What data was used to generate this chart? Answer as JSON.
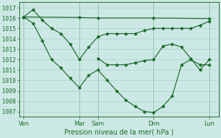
{
  "bg_color": "#cce8e4",
  "grid_color": "#aaccc8",
  "line_color": "#1a6b2a",
  "xlabel": "Pression niveau de la mer( hPa )",
  "ylim": [
    1006.5,
    1017.5
  ],
  "yticks": [
    1007,
    1008,
    1009,
    1010,
    1011,
    1012,
    1013,
    1014,
    1015,
    1016,
    1017
  ],
  "xtick_labels": [
    "Ven",
    "Mar",
    "Sam",
    "Dim",
    "Lun"
  ],
  "xtick_positions": [
    0,
    36,
    48,
    84,
    120
  ],
  "vline_positions": [
    0,
    36,
    48,
    84,
    120
  ],
  "xlim": [
    -3,
    126
  ],
  "line_flat_x": [
    0,
    36,
    48,
    84,
    120
  ],
  "line_flat_y": [
    1016.1,
    1016.05,
    1016.0,
    1016.0,
    1015.95
  ],
  "line_mid_x": [
    0,
    6,
    12,
    18,
    24,
    30,
    36,
    42,
    48,
    54,
    60,
    66,
    72,
    78,
    84,
    90,
    96,
    102,
    108,
    114,
    120
  ],
  "line_mid_y": [
    1016.1,
    1016.8,
    1015.8,
    1015.0,
    1014.5,
    1013.5,
    1012.0,
    1013.2,
    1014.2,
    1014.5,
    1014.5,
    1014.5,
    1014.5,
    1014.8,
    1015.0,
    1015.0,
    1015.0,
    1015.0,
    1015.0,
    1015.3,
    1015.7
  ],
  "line_low_x": [
    0,
    6,
    12,
    18,
    24,
    30,
    36,
    42,
    48,
    54,
    60,
    66,
    72,
    78,
    84,
    90,
    96,
    102,
    108,
    114,
    120
  ],
  "line_low_y": [
    1016.1,
    1015.5,
    1013.8,
    1012.0,
    1011.2,
    1010.2,
    1009.3,
    1010.5,
    1011.0,
    1010.0,
    1009.0,
    1008.1,
    1007.5,
    1007.0,
    1006.9,
    1007.5,
    1008.5,
    1011.5,
    1012.0,
    1011.5,
    1011.5
  ],
  "line_rec_x": [
    48,
    54,
    60,
    66,
    72,
    78,
    84,
    90,
    96,
    102,
    108,
    114,
    120
  ],
  "line_rec_y": [
    1012.1,
    1011.5,
    1011.5,
    1011.5,
    1011.7,
    1011.9,
    1012.0,
    1013.3,
    1013.5,
    1013.2,
    1012.1,
    1011.0,
    1012.0
  ],
  "marker_size": 2.5,
  "linewidth": 0.9,
  "tick_fontsize": 6,
  "xlabel_fontsize": 7
}
